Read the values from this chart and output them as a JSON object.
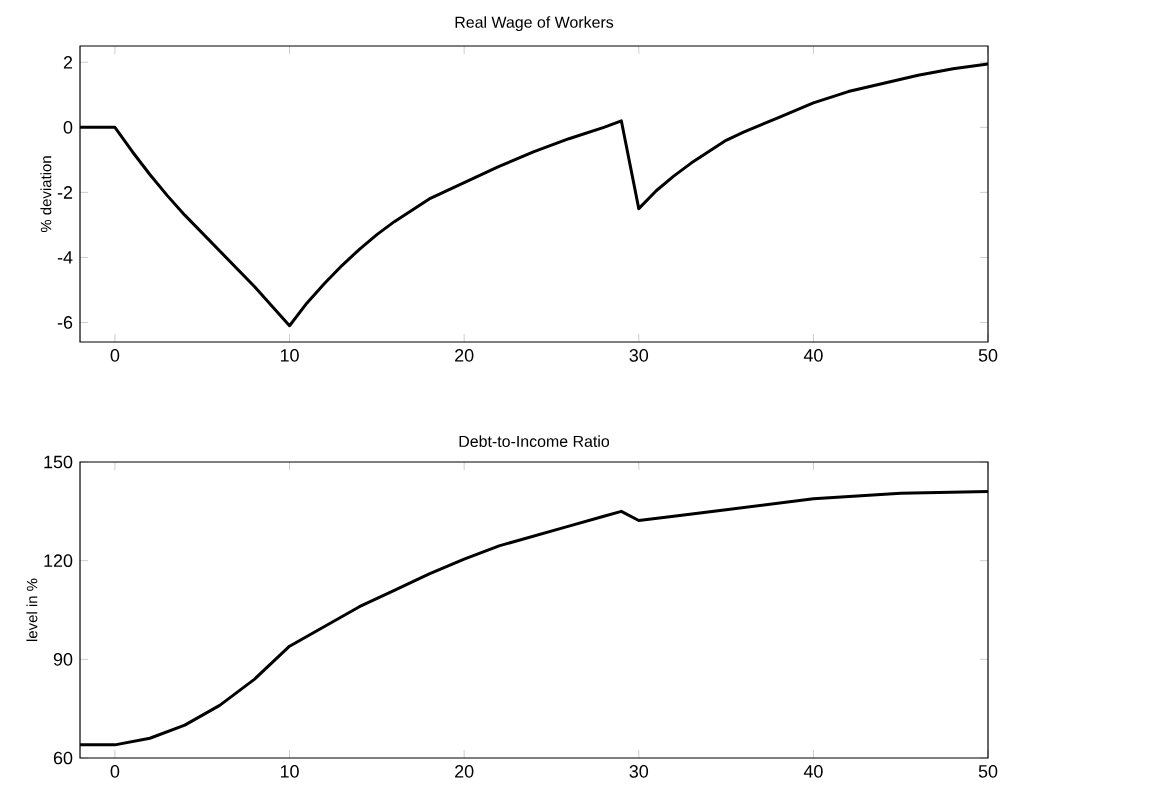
{
  "chart_data": [
    {
      "type": "line",
      "title": "Real Wage of Workers",
      "ylabel": "% deviation",
      "color": "#000000",
      "line_style": "solid",
      "x": [
        -2,
        0,
        1,
        2,
        3,
        4,
        5,
        6,
        7,
        8,
        9,
        10,
        11,
        12,
        13,
        14,
        15,
        16,
        17,
        18,
        19,
        20,
        22,
        24,
        26,
        28,
        29,
        30,
        31,
        32,
        33,
        34,
        35,
        36,
        38,
        40,
        42,
        44,
        46,
        48,
        50
      ],
      "values": [
        0,
        0,
        -0.75,
        -1.45,
        -2.1,
        -2.7,
        -3.25,
        -3.8,
        -4.35,
        -4.9,
        -5.5,
        -6.1,
        -5.4,
        -4.8,
        -4.25,
        -3.75,
        -3.3,
        -2.9,
        -2.55,
        -2.2,
        -1.95,
        -1.7,
        -1.2,
        -0.75,
        -0.35,
        0.0,
        0.2,
        -2.5,
        -1.95,
        -1.5,
        -1.1,
        -0.75,
        -0.4,
        -0.15,
        0.3,
        0.75,
        1.1,
        1.35,
        1.6,
        1.8,
        1.95
      ],
      "xlim": [
        -2,
        50
      ],
      "xticks": [
        0,
        10,
        20,
        30,
        40,
        50
      ],
      "ylim": [
        -6.6,
        2.5
      ],
      "yticks": [
        -6,
        -4,
        -2,
        0,
        2
      ]
    },
    {
      "type": "line",
      "title": "Debt-to-Income Ratio",
      "ylabel": "level in %",
      "color": "#000000",
      "line_style": "solid",
      "x": [
        -2,
        0,
        2,
        4,
        6,
        8,
        10,
        12,
        14,
        16,
        18,
        20,
        22,
        24,
        26,
        28,
        29,
        30,
        32,
        35,
        40,
        45,
        50
      ],
      "values": [
        64,
        64,
        66,
        70,
        76,
        84,
        94,
        100,
        106,
        111,
        116,
        120.5,
        124.5,
        127.5,
        130.5,
        133.5,
        135,
        132.2,
        133.5,
        135.5,
        138.8,
        140.5,
        141
      ],
      "xlim": [
        -2,
        50
      ],
      "xticks": [
        0,
        10,
        20,
        30,
        40,
        50
      ],
      "ylim": [
        60,
        150
      ],
      "yticks": [
        60,
        90,
        120,
        150
      ]
    }
  ]
}
